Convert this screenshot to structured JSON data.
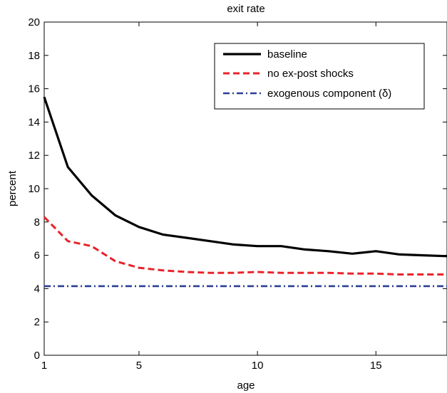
{
  "chart_data": {
    "type": "line",
    "title": "exit rate",
    "xlabel": "age",
    "ylabel": "percent",
    "xlim": [
      1,
      18
    ],
    "ylim": [
      0,
      20
    ],
    "xticks": [
      1,
      5,
      10,
      15
    ],
    "yticks": [
      0,
      2,
      4,
      6,
      8,
      10,
      12,
      14,
      16,
      18,
      20
    ],
    "grid": false,
    "legend_position": "top-right",
    "x": [
      1,
      2,
      3,
      4,
      5,
      6,
      7,
      8,
      9,
      10,
      11,
      12,
      13,
      14,
      15,
      16,
      17,
      18
    ],
    "series": [
      {
        "name": "baseline",
        "color": "#000000",
        "style": "solid",
        "values": [
          15.5,
          11.3,
          9.6,
          8.4,
          7.7,
          7.25,
          7.05,
          6.85,
          6.65,
          6.55,
          6.55,
          6.35,
          6.25,
          6.1,
          6.25,
          6.05,
          6.0,
          5.95
        ]
      },
      {
        "name": "no ex-post shocks",
        "color": "#e8232a",
        "style": "dashed",
        "values": [
          8.3,
          6.85,
          6.55,
          5.65,
          5.25,
          5.1,
          5.0,
          4.95,
          4.95,
          5.0,
          4.95,
          4.95,
          4.95,
          4.9,
          4.9,
          4.85,
          4.85,
          4.85
        ]
      },
      {
        "name": "exogenous component (δ)",
        "color": "#2b3f97",
        "style": "dashdot",
        "values": [
          4.15,
          4.15,
          4.15,
          4.15,
          4.15,
          4.15,
          4.15,
          4.15,
          4.15,
          4.15,
          4.15,
          4.15,
          4.15,
          4.15,
          4.15,
          4.15,
          4.15,
          4.15
        ]
      }
    ]
  }
}
